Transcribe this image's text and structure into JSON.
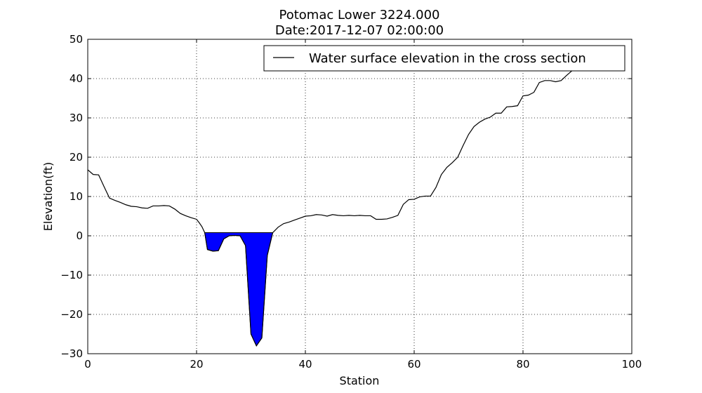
{
  "chart_data": {
    "type": "area",
    "title": "Potomac Lower 3224.000",
    "subtitle": "Date:2017-12-07 02:00:00",
    "xlabel": "Station",
    "ylabel": "Elevation(ft)",
    "xlim": [
      0,
      100
    ],
    "ylim": [
      -30,
      50
    ],
    "xticks": [
      0,
      20,
      40,
      60,
      80,
      100
    ],
    "yticks": [
      -30,
      -20,
      -10,
      0,
      10,
      20,
      30,
      40,
      50
    ],
    "xtick_labels": [
      "0",
      "20",
      "40",
      "60",
      "80",
      "100"
    ],
    "ytick_labels": [
      "−30",
      "−20",
      "−10",
      "0",
      "10",
      "20",
      "30",
      "40",
      "50"
    ],
    "grid": true,
    "legend_position": "top-right",
    "water_surface_elevation": 0.8,
    "series": [
      {
        "name": "Water surface elevation in the cross section",
        "color": "#000000",
        "x": [
          0,
          1,
          2,
          3,
          4,
          5,
          6,
          7,
          8,
          9,
          10,
          11,
          12,
          13,
          14,
          15,
          16,
          17,
          18,
          19,
          20,
          20.5,
          21,
          21.5,
          22,
          23,
          24,
          25,
          26,
          27,
          28,
          29,
          30,
          31,
          32,
          33,
          34,
          35,
          36,
          37,
          38,
          39,
          40,
          41,
          42,
          43,
          44,
          45,
          46,
          47,
          48,
          49,
          50,
          51,
          52,
          53,
          54,
          55,
          56,
          57,
          58,
          59,
          60,
          61,
          62,
          63,
          64,
          65,
          66,
          67,
          68,
          69,
          70,
          71,
          72,
          73,
          74,
          75,
          76,
          77,
          78,
          79,
          80,
          81,
          82,
          83,
          84,
          85,
          86,
          87,
          88,
          89
        ],
        "y": [
          16.8,
          15.6,
          15.5,
          12.5,
          9.6,
          9.0,
          8.5,
          7.9,
          7.5,
          7.4,
          7.1,
          7.0,
          7.6,
          7.6,
          7.7,
          7.6,
          6.8,
          5.7,
          5.1,
          4.6,
          4.2,
          3.3,
          2.3,
          0.8,
          -3.5,
          -3.9,
          -3.8,
          -0.8,
          0.0,
          0.1,
          0.0,
          -2.5,
          -25.0,
          -28.0,
          -26.0,
          -5.0,
          0.8,
          2.2,
          3.1,
          3.5,
          4.0,
          4.5,
          5.0,
          5.1,
          5.4,
          5.3,
          5.0,
          5.4,
          5.2,
          5.1,
          5.2,
          5.1,
          5.2,
          5.1,
          5.1,
          4.2,
          4.2,
          4.3,
          4.7,
          5.2,
          8.0,
          9.2,
          9.3,
          9.9,
          10.1,
          10.1,
          12.3,
          15.6,
          17.4,
          18.6,
          20.0,
          23.0,
          25.8,
          27.8,
          28.9,
          29.7,
          30.2,
          31.2,
          31.2,
          32.8,
          32.9,
          33.1,
          35.6,
          35.8,
          36.5,
          39.0,
          39.5,
          39.5,
          39.2,
          39.5,
          40.8,
          42.0
        ]
      }
    ],
    "fill": {
      "color": "#0000ff",
      "edge_color": "#000000",
      "level": 0.8
    }
  }
}
